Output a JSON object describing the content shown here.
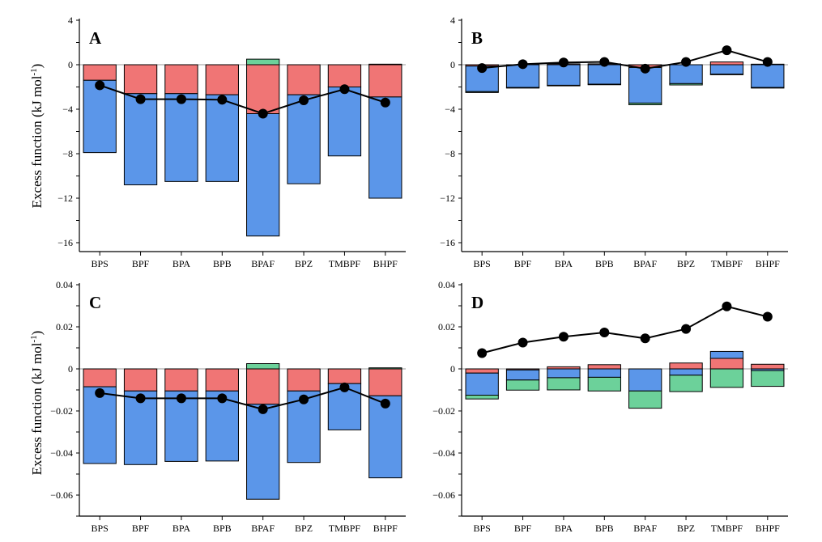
{
  "colors": {
    "red": "#F07575",
    "blue": "#5B96E9",
    "green": "#6CD19A",
    "line": "#000000"
  },
  "ylabel_top": "Excess function (kJ mol",
  "ylabel_bottom": "Excess function (kJ mol",
  "ylabel_sup": "-1",
  "ylabel_close": ")",
  "chart_data": [
    {
      "id": "A",
      "type": "bar",
      "panel_label": "A",
      "categories": [
        "BPS",
        "BPF",
        "BPA",
        "BPB",
        "BPAF",
        "BPZ",
        "TMBPF",
        "BHPF"
      ],
      "ylim": [
        -17,
        4
      ],
      "yticks": [
        4,
        0,
        -4,
        -8,
        -12,
        -16
      ],
      "ytick_labels": [
        "4",
        "0",
        "−4",
        "−8",
        "−12",
        "−16"
      ],
      "series": [
        {
          "color_key": "red",
          "values": [
            -1.4,
            -2.6,
            -2.6,
            -2.7,
            -4.4,
            -2.7,
            -2.0,
            -2.9
          ]
        },
        {
          "color_key": "blue",
          "values": [
            -6.5,
            -8.2,
            -7.9,
            -7.8,
            -11.0,
            -8.0,
            -6.2,
            -9.1
          ]
        },
        {
          "color_key": "green",
          "values": [
            0,
            0,
            0,
            0,
            0.5,
            0,
            0,
            0.05
          ]
        }
      ],
      "line_values": [
        -1.85,
        -3.1,
        -3.1,
        -3.15,
        -4.4,
        -3.2,
        -2.2,
        -3.4
      ]
    },
    {
      "id": "B",
      "type": "bar",
      "panel_label": "B",
      "categories": [
        "BPS",
        "BPF",
        "BPA",
        "BPB",
        "BPAF",
        "BPZ",
        "TMBPF",
        "BHPF"
      ],
      "ylim": [
        -17,
        4
      ],
      "yticks": [
        4,
        0,
        -4,
        -8,
        -12,
        -16
      ],
      "ytick_labels": [
        "4",
        "0",
        "−4",
        "−8",
        "−12",
        "−16"
      ],
      "series": [
        {
          "color_key": "red",
          "values": [
            -0.12,
            0,
            0.08,
            0.08,
            -0.25,
            0,
            0.25,
            0.05
          ]
        },
        {
          "color_key": "blue",
          "values": [
            -2.3,
            -2.05,
            -1.85,
            -1.75,
            -3.2,
            -1.7,
            -0.85,
            -2.05
          ]
        },
        {
          "color_key": "green",
          "values": [
            -0.08,
            -0.05,
            -0.05,
            -0.05,
            -0.15,
            -0.12,
            -0.05,
            -0.05
          ]
        }
      ],
      "line_values": [
        -0.3,
        0.05,
        0.2,
        0.25,
        -0.35,
        0.25,
        1.3,
        0.25
      ]
    },
    {
      "id": "C",
      "type": "bar",
      "panel_label": "C",
      "categories": [
        "BPS",
        "BPF",
        "BPA",
        "BPB",
        "BPAF",
        "BPZ",
        "TMBPF",
        "BHPF"
      ],
      "ylim": [
        -0.07,
        0.04
      ],
      "yticks": [
        0.04,
        0.02,
        0,
        -0.02,
        -0.04,
        -0.06
      ],
      "ytick_labels": [
        "0.04",
        "0.02",
        "0",
        "−0.02",
        "−0.04",
        "−0.06"
      ],
      "series": [
        {
          "color_key": "red",
          "values": [
            -0.0085,
            -0.0105,
            -0.0105,
            -0.0105,
            -0.0168,
            -0.0105,
            -0.007,
            -0.0128
          ]
        },
        {
          "color_key": "blue",
          "values": [
            -0.0365,
            -0.035,
            -0.0335,
            -0.0333,
            -0.0452,
            -0.034,
            -0.022,
            -0.039
          ]
        },
        {
          "color_key": "green",
          "values": [
            0,
            0,
            0,
            0,
            0.0025,
            0,
            0,
            0.0005
          ]
        }
      ],
      "line_values": [
        -0.0115,
        -0.014,
        -0.014,
        -0.014,
        -0.0192,
        -0.0145,
        -0.0088,
        -0.0165
      ]
    },
    {
      "id": "D",
      "type": "bar",
      "panel_label": "D",
      "categories": [
        "BPS",
        "BPF",
        "BPA",
        "BPB",
        "BPAF",
        "BPZ",
        "TMBPF",
        "BHPF"
      ],
      "ylim": [
        -0.07,
        0.04
      ],
      "yticks": [
        0.04,
        0.02,
        0,
        -0.02,
        -0.04,
        -0.06
      ],
      "ytick_labels": [
        "0.04",
        "0.02",
        "0",
        "−0.02",
        "−0.04",
        "−0.06"
      ],
      "series": [
        {
          "color_key": "red",
          "values": [
            -0.002,
            -0.0005,
            0.001,
            0.002,
            0,
            0.0028,
            0.005,
            0.0022
          ]
        },
        {
          "color_key": "blue",
          "values": [
            -0.0105,
            -0.0048,
            -0.0042,
            -0.004,
            -0.0105,
            -0.003,
            0.0033,
            -0.0008
          ]
        },
        {
          "color_key": "green",
          "values": [
            -0.0018,
            -0.0048,
            -0.0058,
            -0.0065,
            -0.0082,
            -0.0078,
            -0.0088,
            -0.0075
          ]
        }
      ],
      "line_values": [
        0.0075,
        0.0125,
        0.0153,
        0.0173,
        0.0145,
        0.019,
        0.0297,
        0.0248
      ]
    }
  ]
}
